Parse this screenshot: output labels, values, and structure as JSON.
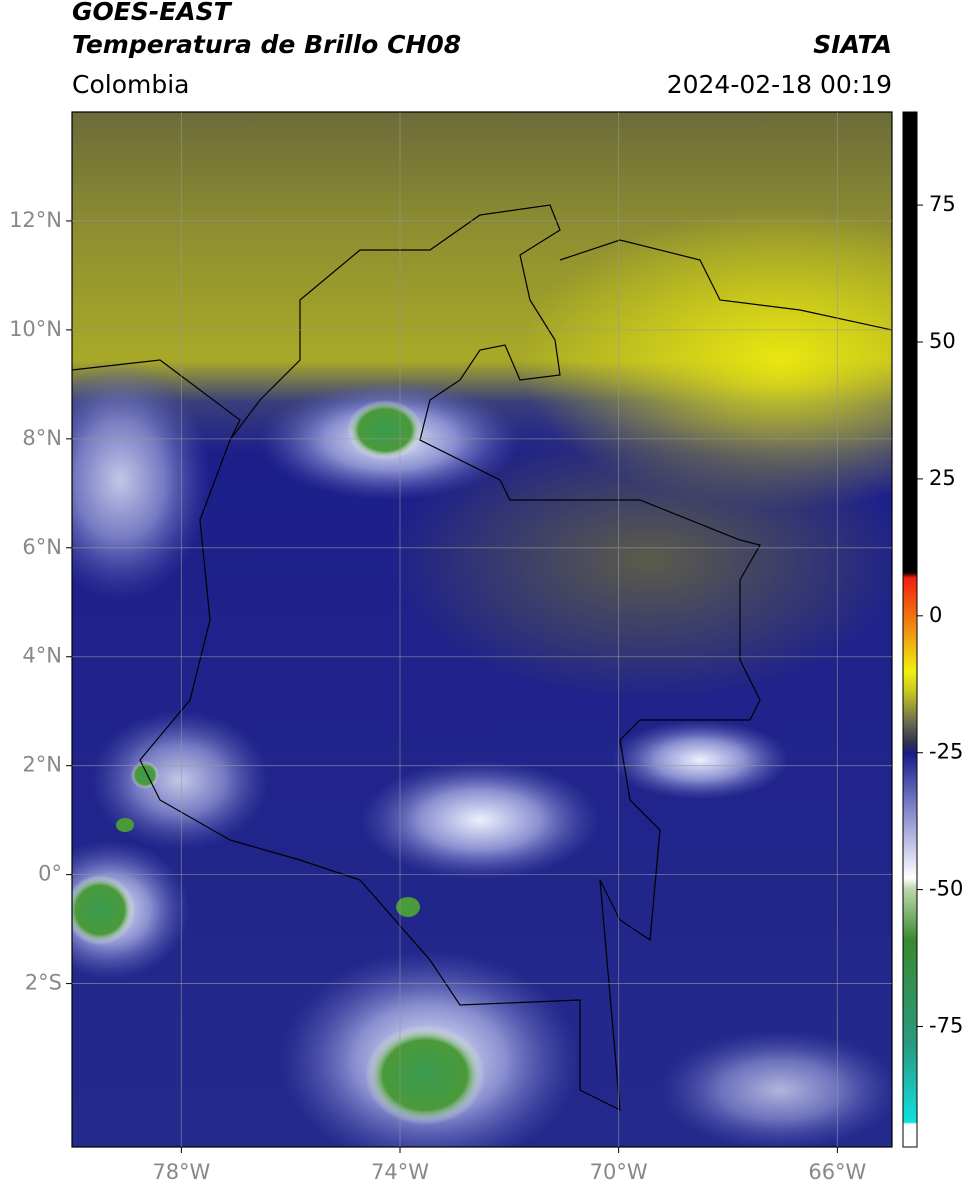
{
  "header": {
    "title": "GOES-EAST",
    "subtitle": "Temperatura de Brillo CH08",
    "source": "SIATA",
    "region": "Colombia",
    "datetime": "2024-02-18 00:19"
  },
  "map": {
    "xlim": [
      -80,
      -65
    ],
    "ylim": [
      -5,
      14
    ],
    "xticks": [
      {
        "value": -78,
        "label": "78°W"
      },
      {
        "value": -74,
        "label": "74°W"
      },
      {
        "value": -70,
        "label": "70°W"
      },
      {
        "value": -66,
        "label": "66°W"
      }
    ],
    "yticks": [
      {
        "value": 12,
        "label": "12°N"
      },
      {
        "value": 10,
        "label": "10°N"
      },
      {
        "value": 8,
        "label": "8°N"
      },
      {
        "value": 6,
        "label": "6°N"
      },
      {
        "value": 4,
        "label": "4°N"
      },
      {
        "value": 2,
        "label": "2°N"
      },
      {
        "value": 0,
        "label": "0°"
      },
      {
        "value": -2,
        "label": "2°S"
      }
    ],
    "grid": true
  },
  "colorbar": {
    "lim": [
      -97,
      92
    ],
    "ticks": [
      75,
      50,
      25,
      0,
      -25,
      -50,
      -75
    ]
  }
}
